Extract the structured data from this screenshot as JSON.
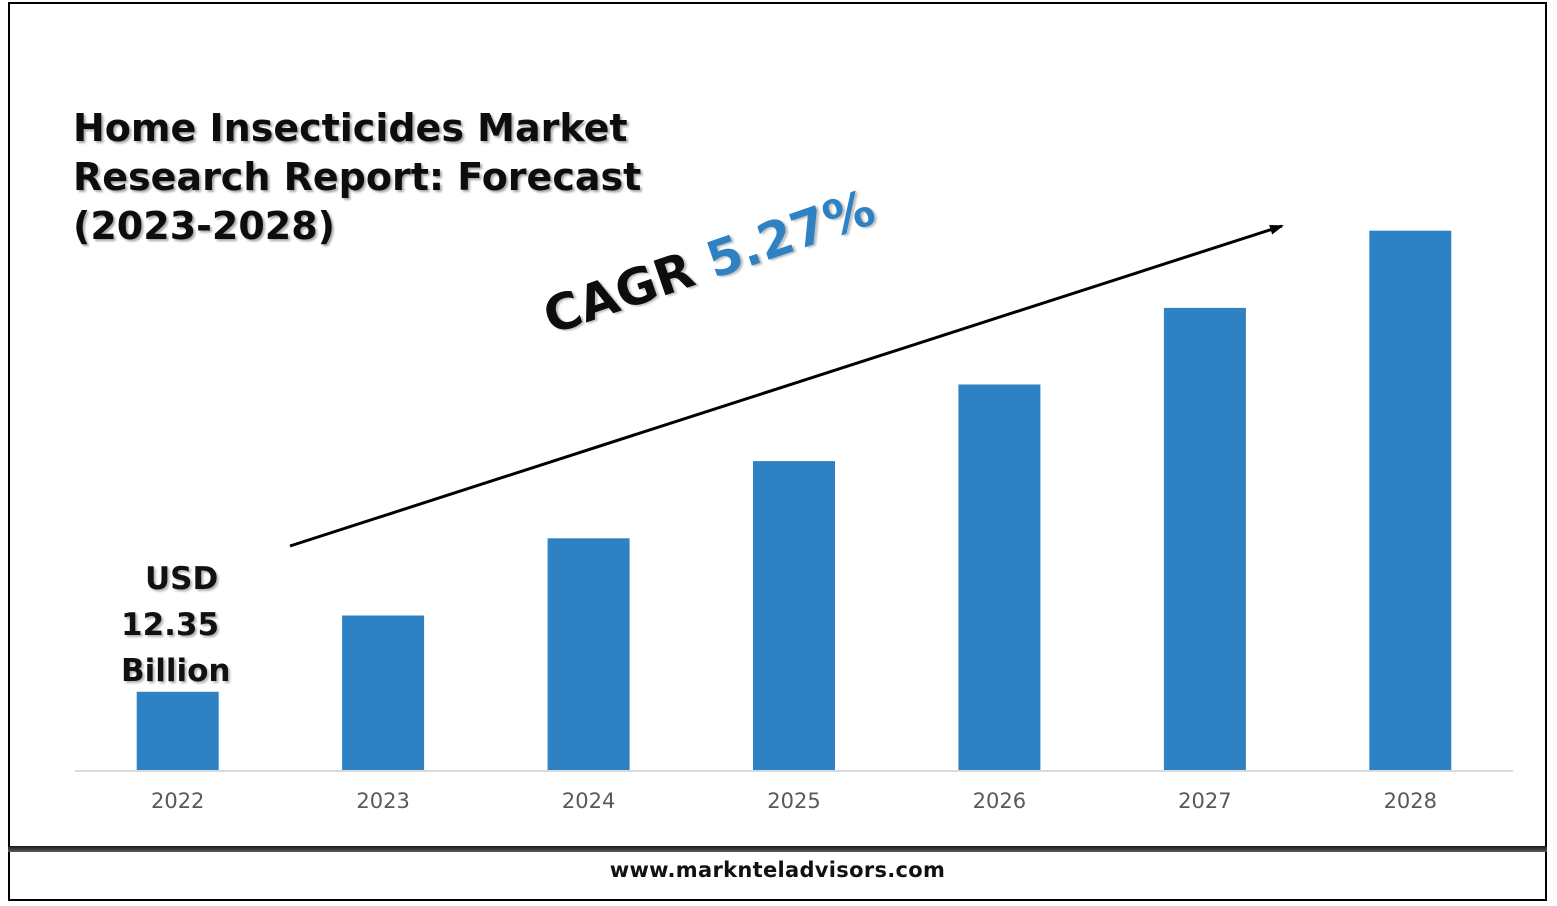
{
  "title": "Home Insecticides Market Research Report: Forecast (2023-2028)",
  "annotation": {
    "line1": "USD",
    "line2": "12.35",
    "line3": "Billion"
  },
  "cagr": {
    "label": "CAGR",
    "value": "5.27%"
  },
  "footer": {
    "website": "www.marknteladvisors.com"
  },
  "colors": {
    "bar": "#2e82c4",
    "axis": "#d9d9d9",
    "tick_text": "#595959",
    "arrow": "#000000"
  },
  "chart_data": {
    "type": "bar",
    "title": "Home Insecticides Market Research Report: Forecast (2023-2028)",
    "categories": [
      "2022",
      "2023",
      "2024",
      "2025",
      "2026",
      "2027",
      "2028"
    ],
    "values": [
      12.35,
      24.4,
      36.6,
      48.8,
      60.9,
      73.0,
      85.2
    ],
    "value_note_first": "USD 12.35 Billion",
    "ylim": [
      0,
      100
    ],
    "grid": false,
    "legend": "none",
    "xlabel": "",
    "ylabel": ""
  }
}
